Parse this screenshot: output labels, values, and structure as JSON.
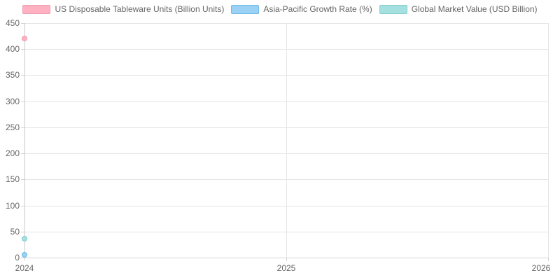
{
  "chart_data": {
    "type": "scatter",
    "title": "",
    "legend_position": "top",
    "grid": true,
    "xlim": [
      2024,
      2026
    ],
    "ylim": [
      0,
      450
    ],
    "x_tick_values": [
      2024,
      2025,
      2026
    ],
    "x_tick_labels": [
      "2024",
      "2025",
      "2026"
    ],
    "y_tick_values": [
      0,
      50,
      100,
      150,
      200,
      250,
      300,
      350,
      400,
      450
    ],
    "y_tick_labels": [
      "0",
      "50",
      "100",
      "150",
      "200",
      "250",
      "300",
      "350",
      "400",
      "450"
    ],
    "colors": {
      "gridline": "#e5e5e5",
      "axis_line_y": "#c9c9c9",
      "axis_line_x": "#d4d4d4",
      "tick_text": "#666666",
      "legend_text": "#666666",
      "background": "#ffffff"
    },
    "series": [
      {
        "name": "US Disposable Tableware Units (Billion Units)",
        "fill": "#ffb1c1",
        "border": "#f09cb0",
        "points": [
          {
            "x": 2024,
            "y": 420
          }
        ]
      },
      {
        "name": "Asia-Pacific Growth Rate (%)",
        "fill": "#9bd1f5",
        "border": "#6eb9ea",
        "points": [
          {
            "x": 2024,
            "y": 6
          }
        ]
      },
      {
        "name": "Global Market Value (USD Billion)",
        "fill": "#a5e0e0",
        "border": "#85cccb",
        "points": [
          {
            "x": 2024,
            "y": 36
          }
        ]
      }
    ]
  }
}
